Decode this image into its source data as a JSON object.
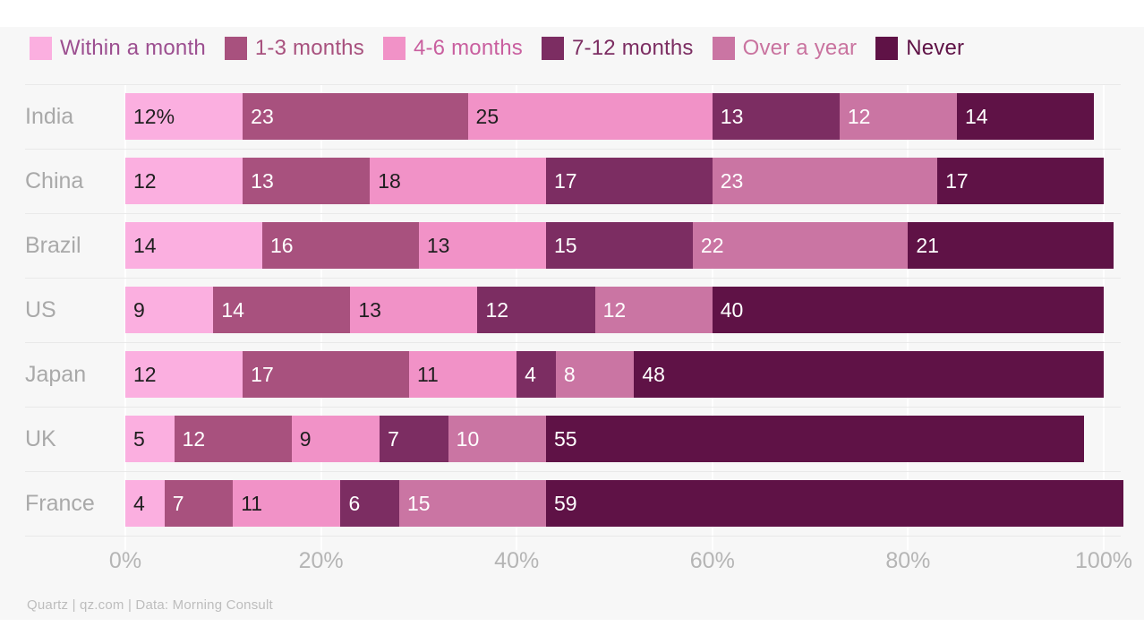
{
  "page": {
    "background": "#ffffff",
    "panel_background": "#f7f7f7",
    "grid_vertical_color": "#ffffff",
    "grid_horizontal_color": "#e9e9e9",
    "row_label_color": "#a9a9a9",
    "axis_label_color": "#b5b5b5"
  },
  "footer": {
    "source": "Quartz | qz.com | Data: Morning Consult"
  },
  "chart_data": {
    "type": "bar",
    "variant": "horizontal-stacked",
    "stacked": true,
    "unit": "%",
    "title": "",
    "xlabel": "",
    "ylabel": "",
    "xlim": [
      0,
      100
    ],
    "x_ticks": [
      "0%",
      "20%",
      "40%",
      "60%",
      "80%",
      "100%"
    ],
    "grid": "vertical white gridlines on gray panel, light horizontal row separators",
    "legend_position": "top",
    "categories": [
      "India",
      "China",
      "Brazil",
      "US",
      "Japan",
      "UK",
      "France"
    ],
    "first_segment_label_override": "12%",
    "value_label_colors": {
      "dark": "#1f1f1f",
      "light": "#ffffff"
    },
    "series": [
      {
        "name": "Within a month",
        "color": "#fbafe0",
        "legend_text_color": "#9c4f90",
        "value_text": "dark",
        "values": [
          12,
          12,
          14,
          9,
          12,
          5,
          4
        ]
      },
      {
        "name": "1-3 months",
        "color": "#a8517e",
        "legend_text_color": "#a8517e",
        "value_text": "light",
        "values": [
          23,
          13,
          16,
          14,
          17,
          12,
          7
        ]
      },
      {
        "name": "4-6 months",
        "color": "#f192c7",
        "legend_text_color": "#c95f9f",
        "value_text": "dark",
        "values": [
          25,
          18,
          13,
          13,
          11,
          9,
          11
        ]
      },
      {
        "name": "7-12 months",
        "color": "#7c2d62",
        "legend_text_color": "#7c2d62",
        "value_text": "light",
        "values": [
          13,
          17,
          15,
          12,
          4,
          7,
          6
        ]
      },
      {
        "name": "Over a year",
        "color": "#ca75a3",
        "legend_text_color": "#c9739f",
        "value_text": "light",
        "values": [
          12,
          23,
          22,
          12,
          8,
          10,
          15
        ]
      },
      {
        "name": "Never",
        "color": "#5f1246",
        "legend_text_color": "#5f1246",
        "value_text": "light",
        "values": [
          14,
          17,
          21,
          40,
          48,
          55,
          59
        ]
      }
    ]
  }
}
